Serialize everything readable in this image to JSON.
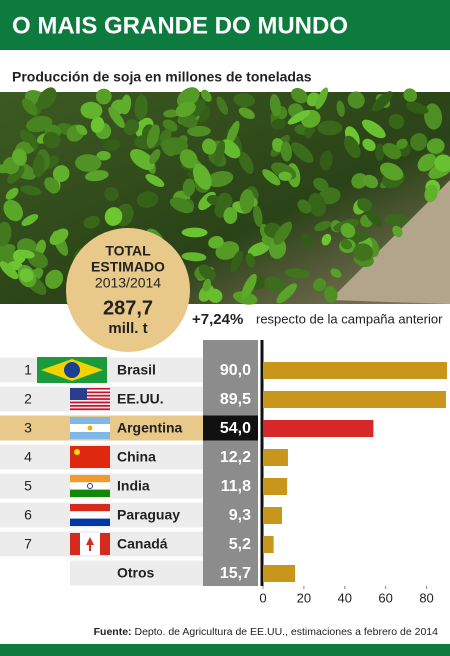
{
  "chart_data": {
    "type": "bar",
    "title": "O MAIS GRANDE DO MUNDO",
    "subtitle": "Producción de soja en millones de toneladas",
    "badge": {
      "line1": "TOTAL",
      "line2": "ESTIMADO",
      "line3": "2013/2014",
      "total": "287,7",
      "unit": "mill. t"
    },
    "annotation": {
      "change": "+7,24%",
      "text": "respecto de la campaña anterior"
    },
    "ranks": [
      "1",
      "2",
      "3",
      "4",
      "5",
      "6",
      "7",
      null
    ],
    "categories": [
      "Brasil",
      "EE.UU.",
      "Argentina",
      "China",
      "India",
      "Paraguay",
      "Canadá",
      "Otros"
    ],
    "values": [
      90.0,
      89.5,
      54.0,
      12.2,
      11.8,
      9.3,
      5.2,
      15.7
    ],
    "value_labels": [
      "90,0",
      "89,5",
      "54,0",
      "12,2",
      "11,8",
      "9,3",
      "5,2",
      "15,7"
    ],
    "colors": [
      "#c9961c",
      "#c9961c",
      "#d62828",
      "#c9961c",
      "#c9961c",
      "#c9961c",
      "#c9961c",
      "#c9961c"
    ],
    "highlight": "Argentina",
    "xlim": [
      0,
      90
    ],
    "xticks": [
      0,
      20,
      40,
      60,
      80
    ],
    "source": {
      "label": "Fuente:",
      "text": "Depto. de Agricultura de EE.UU., estimaciones a febrero de 2014"
    }
  }
}
